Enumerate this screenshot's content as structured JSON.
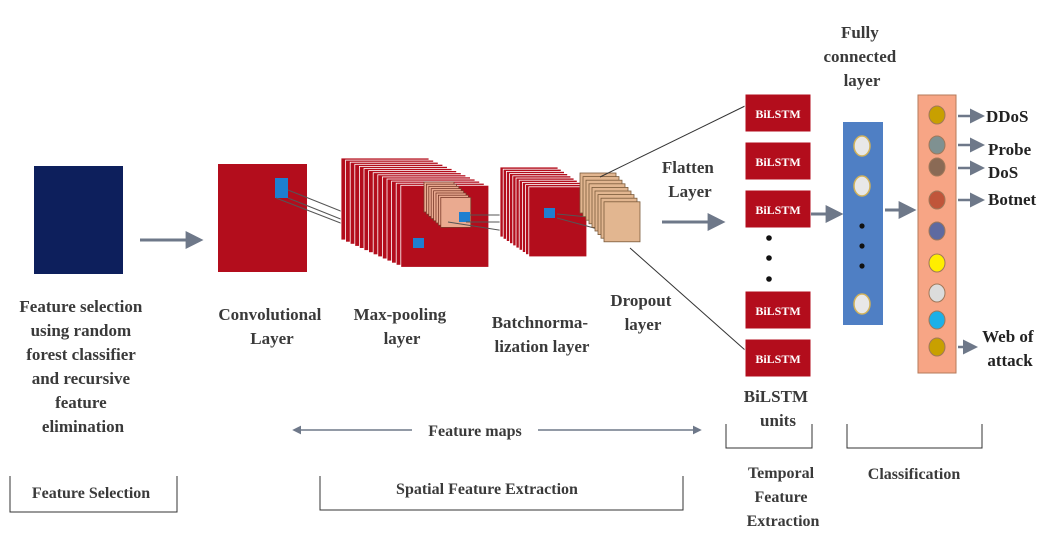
{
  "feature_selection": {
    "lines": [
      "Feature selection",
      "using random",
      "forest classifier",
      "and recursive",
      "feature",
      "elimination"
    ],
    "color": "#0d1f5c"
  },
  "conv": {
    "lines": [
      "Convolutional",
      "Layer"
    ],
    "color": "#b30d1c",
    "filter_color": "#1e7fd0"
  },
  "maxpool": {
    "lines": [
      "Max-pooling",
      "layer"
    ],
    "color": "#eaaa90"
  },
  "batchnorm": {
    "lines": [
      "Batchnorma-",
      "lization layer"
    ]
  },
  "dropout": {
    "lines": [
      "Dropout",
      "layer"
    ],
    "color": "#e2b690"
  },
  "flatten": {
    "lines": [
      "Flatten",
      "Layer"
    ]
  },
  "bilstm": {
    "unit_label": "BiLSTM",
    "lines": [
      "BiLSTM",
      "units"
    ],
    "count_top": 3,
    "count_bottom": 2
  },
  "fully_connected": {
    "lines": [
      "Fully",
      "connected",
      "layer"
    ],
    "color": "#4f7fc4"
  },
  "output_layer": {
    "color": "#f7a585",
    "node_colors": [
      "#c8a000",
      "#7f9191",
      "#8a6a55",
      "#c0553a",
      "#5e6aa0",
      "#ffee00",
      "#dcdcdc",
      "#1bb0e8",
      "#c8a000"
    ]
  },
  "outputs": [
    {
      "label": "DDoS"
    },
    {
      "label": "Probe"
    },
    {
      "label": "DoS"
    },
    {
      "label": "Botnet"
    },
    {
      "lines": [
        "Web of",
        "attack"
      ]
    }
  ],
  "feature_maps": {
    "label": "Feature maps"
  },
  "sections": {
    "feature_selection": "Feature  Selection",
    "spatial": "Spatial Feature  Extraction",
    "temporal": [
      "Temporal",
      "Feature",
      "Extraction"
    ],
    "classification": "Classification"
  }
}
